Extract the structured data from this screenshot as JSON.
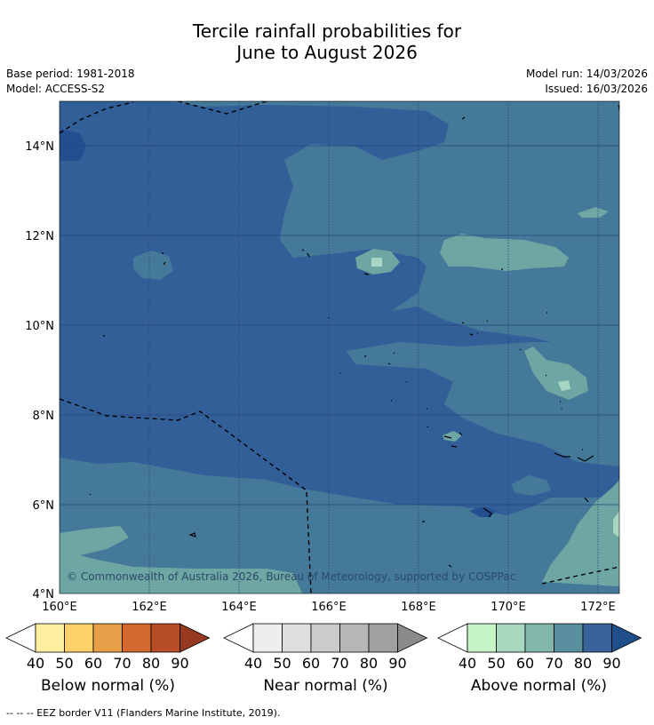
{
  "title_line1": "Tercile rainfall probabilities for",
  "title_line2": "June to August 2026",
  "base_period": "Base period: 1981-2018",
  "model": "Model: ACCESS-S2",
  "model_run": "Model run: 14/03/2026",
  "issued": "Issued: 16/03/2026",
  "copyright": "© Commonwealth of Australia 2026, Bureau of Meteorology, supported by COSPPac",
  "lat_labels": [
    "14°N",
    "12°N",
    "10°N",
    "8°N",
    "6°N",
    "4°N"
  ],
  "lon_labels": [
    "160°E",
    "162°E",
    "164°E",
    "166°E",
    "168°E",
    "170°E",
    "172°E"
  ],
  "colorbars": [
    {
      "label": "Below normal (%)",
      "ticks": [
        "40",
        "50",
        "60",
        "70",
        "80",
        "90"
      ],
      "colors": [
        "#ffeea0",
        "#fdd06a",
        "#e8a048",
        "#d4692f",
        "#b84e28",
        "#96391f"
      ]
    },
    {
      "label": "Near normal (%)",
      "ticks": [
        "40",
        "50",
        "60",
        "70",
        "80",
        "90"
      ],
      "colors": [
        "#eeeeee",
        "#dedede",
        "#cbcbcb",
        "#b6b6b6",
        "#a0a0a0",
        "#8a8a8a"
      ]
    },
    {
      "label": "Above normal (%)",
      "ticks": [
        "40",
        "50",
        "60",
        "70",
        "80",
        "90"
      ],
      "colors": [
        "#c8f5c8",
        "#a8d8bf",
        "#82b8ac",
        "#5a8fa0",
        "#3a6499",
        "#1f4e8a"
      ]
    }
  ],
  "footnote": "--  --  -- EEZ border V11 (Flanders Marine Institute, 2019).",
  "palette": {
    "above_60": "#6ea6a3",
    "above_70": "#45799a",
    "above_80": "#325f98",
    "above_90": "#234f90",
    "above_50": "#a7d7c2"
  }
}
